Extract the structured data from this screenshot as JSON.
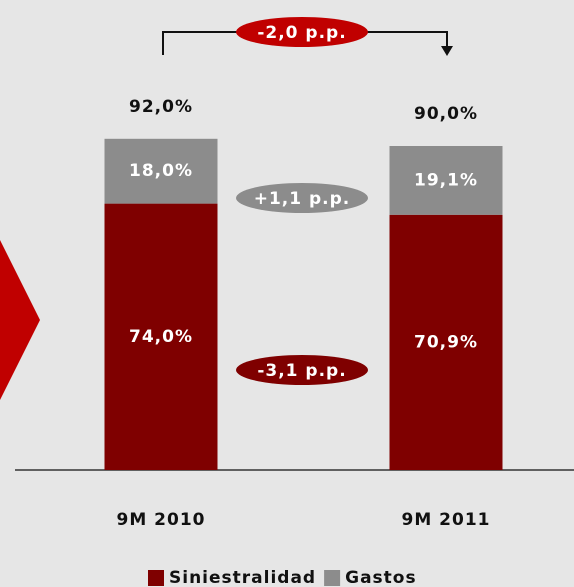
{
  "chart_data": {
    "type": "stacked-bar",
    "categories": [
      "9M 2010",
      "9M 2011"
    ],
    "series": [
      {
        "name": "Siniestralidad",
        "color": "#7f0000",
        "values": [
          74.0,
          70.9
        ],
        "value_labels": [
          "74,0%",
          "70,9%"
        ]
      },
      {
        "name": "Gastos",
        "color": "#8c8c8c",
        "values": [
          18.0,
          19.1
        ],
        "value_labels": [
          "18,0%",
          "19,1%"
        ]
      }
    ],
    "totals": [
      92.0,
      90.0
    ],
    "total_labels": [
      "92,0%",
      "90,0%"
    ],
    "annotations": [
      "-2,0 p.p.",
      "+1,1 p.p.",
      "-3,1 p.p."
    ]
  }
}
